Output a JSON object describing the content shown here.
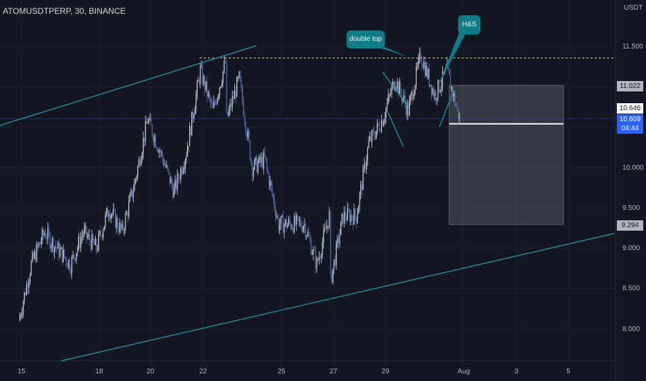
{
  "header": {
    "title": "ATOMUSDTPERP, 30, BINANCE"
  },
  "axis": {
    "unit": "USDT"
  },
  "chart_data": {
    "type": "candlestick",
    "symbol": "ATOMUSDTPERP",
    "interval": "30",
    "exchange": "BINANCE",
    "ylim": [
      7.6,
      12.1
    ],
    "y_ticks": [
      "11.500",
      "10.000",
      "9.500",
      "9.000",
      "8.500",
      "8.000"
    ],
    "x_ticks": [
      "15",
      "18",
      "20",
      "22",
      "25",
      "27",
      "29",
      "Aug",
      "3",
      "5"
    ],
    "price_path": [
      [
        "15",
        8.1
      ],
      [
        "15",
        8.8
      ],
      [
        "16",
        9.2
      ],
      [
        "16",
        9.0
      ],
      [
        "17",
        8.8
      ],
      [
        "17",
        9.2
      ],
      [
        "18",
        9.0
      ],
      [
        "18",
        9.5
      ],
      [
        "19",
        9.2
      ],
      [
        "19",
        9.8
      ],
      [
        "20",
        10.6
      ],
      [
        "20",
        10.2
      ],
      [
        "21",
        9.7
      ],
      [
        "21",
        10.2
      ],
      [
        "22",
        11.2
      ],
      [
        "22",
        10.7
      ],
      [
        "22",
        11.3
      ],
      [
        "23",
        10.6
      ],
      [
        "23",
        11.1
      ],
      [
        "24",
        10.0
      ],
      [
        "24",
        10.1
      ],
      [
        "25",
        9.3
      ],
      [
        "26",
        9.3
      ],
      [
        "26",
        8.8
      ],
      [
        "26",
        9.4
      ],
      [
        "27",
        8.6
      ],
      [
        "27",
        9.4
      ],
      [
        "28",
        9.4
      ],
      [
        "28",
        10.3
      ],
      [
        "29",
        10.6
      ],
      [
        "29",
        11.1
      ],
      [
        "30",
        10.7
      ],
      [
        "30",
        11.4
      ],
      [
        "31",
        10.9
      ],
      [
        "31",
        11.2
      ],
      [
        "31",
        10.6
      ]
    ],
    "annotations": {
      "callouts": [
        "double top",
        "H&S"
      ],
      "resistance_level": 11.36,
      "position_box": {
        "upper": 11.022,
        "entry": 10.646,
        "lower": 9.294
      },
      "upper_channel": {
        "from": [
          "15",
          10.6
        ],
        "to": [
          "22",
          11.5
        ]
      },
      "lower_channel": {
        "from": [
          "16",
          7.6
        ],
        "to": [
          "5",
          9.2
        ]
      }
    },
    "price_labels": {
      "upper": "11.022",
      "entry": "10.646",
      "last": "10.609",
      "countdown": "04:44",
      "lower": "9.294"
    }
  }
}
